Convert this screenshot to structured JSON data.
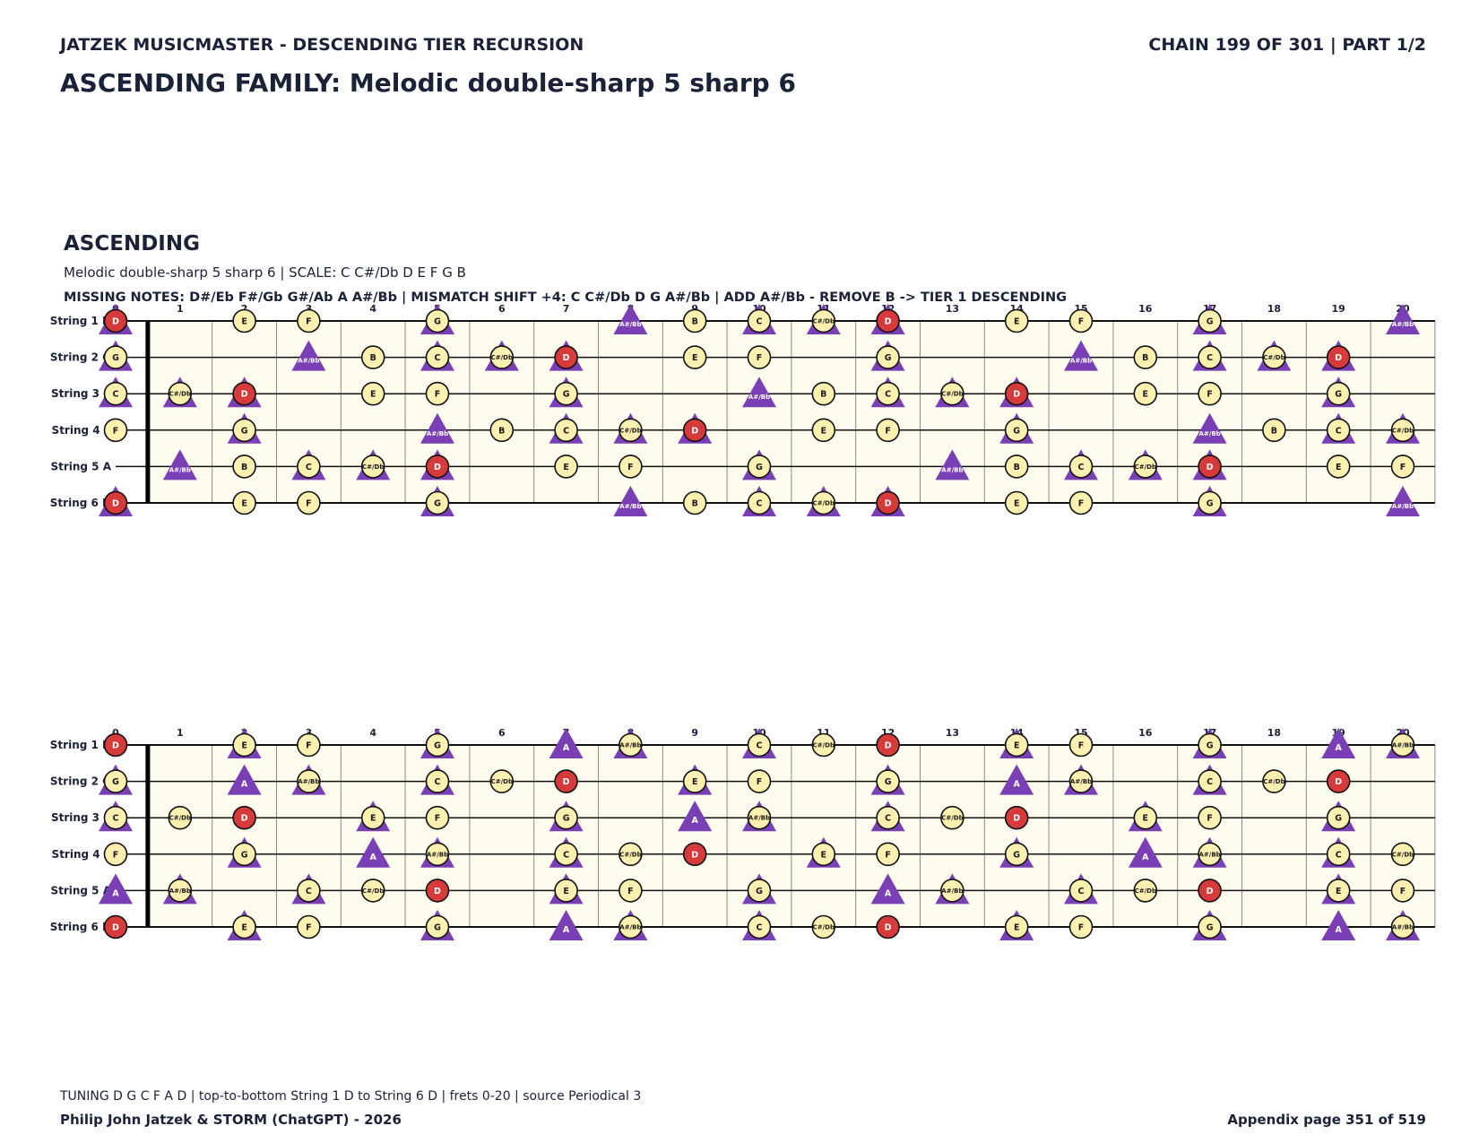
{
  "header": {
    "series": "JATZEK MUSICMASTER - DESCENDING TIER RECURSION",
    "chain": "CHAIN 199 OF 301  |  PART 1/2",
    "title": "ASCENDING FAMILY: Melodic double-sharp 5 sharp 6"
  },
  "section": {
    "title": "ASCENDING",
    "subtitle": "Melodic double-sharp 5 sharp 6  |  SCALE: C C#/Db D E F G B",
    "missing": "MISSING NOTES: D#/Eb F#/Gb G#/Ab A A#/Bb  |  MISMATCH SHIFT +4: C C#/Db D G A#/Bb  |  ADD A#/Bb - REMOVE B -> TIER 1 DESCENDING"
  },
  "boards": [
    {
      "frets": [
        0,
        1,
        2,
        3,
        4,
        5,
        6,
        7,
        8,
        9,
        10,
        11,
        12,
        13,
        14,
        15,
        16,
        17,
        18,
        19,
        20
      ],
      "circle_notes": [
        "C",
        "C#/Db",
        "D",
        "E",
        "F",
        "G",
        "B"
      ],
      "triangle_notes": [
        "C",
        "C#/Db",
        "D",
        "G",
        "A#/Bb"
      ],
      "root_note": "D",
      "strings": [
        {
          "label": "String 1 D",
          "notes": [
            "D",
            null,
            "E",
            "F",
            null,
            "G",
            null,
            null,
            "A#/Bb",
            "B",
            "C",
            "C#/Db",
            "D",
            null,
            "E",
            "F",
            null,
            "G",
            null,
            null,
            "A#/Bb"
          ]
        },
        {
          "label": "String 2 G",
          "notes": [
            "G",
            null,
            null,
            "A#/Bb",
            "B",
            "C",
            "C#/Db",
            "D",
            null,
            "E",
            "F",
            null,
            "G",
            null,
            null,
            "A#/Bb",
            "B",
            "C",
            "C#/Db",
            "D",
            null
          ]
        },
        {
          "label": "String 3 C",
          "notes": [
            "C",
            "C#/Db",
            "D",
            null,
            "E",
            "F",
            null,
            "G",
            null,
            null,
            "A#/Bb",
            "B",
            "C",
            "C#/Db",
            "D",
            null,
            "E",
            "F",
            null,
            "G",
            null
          ]
        },
        {
          "label": "String 4 F",
          "notes": [
            "F",
            null,
            "G",
            null,
            null,
            "A#/Bb",
            "B",
            "C",
            "C#/Db",
            "D",
            null,
            "E",
            "F",
            null,
            "G",
            null,
            null,
            "A#/Bb",
            "B",
            "C",
            "C#/Db"
          ]
        },
        {
          "label": "String 5 A",
          "notes": [
            null,
            "A#/Bb",
            "B",
            "C",
            "C#/Db",
            "D",
            null,
            "E",
            "F",
            null,
            "G",
            null,
            null,
            "A#/Bb",
            "B",
            "C",
            "C#/Db",
            "D",
            null,
            "E",
            "F"
          ]
        },
        {
          "label": "String 6 D",
          "notes": [
            "D",
            null,
            "E",
            "F",
            null,
            "G",
            null,
            null,
            "A#/Bb",
            "B",
            "C",
            "C#/Db",
            "D",
            null,
            "E",
            "F",
            null,
            "G",
            null,
            null,
            "A#/Bb"
          ]
        }
      ]
    },
    {
      "frets": [
        0,
        1,
        2,
        3,
        4,
        5,
        6,
        7,
        8,
        9,
        10,
        11,
        12,
        13,
        14,
        15,
        16,
        17,
        18,
        19,
        20
      ],
      "circle_notes": [
        "C",
        "C#/Db",
        "D",
        "E",
        "F",
        "G",
        "A#/Bb"
      ],
      "triangle_notes": [
        "C",
        "E",
        "G",
        "A",
        "A#/Bb"
      ],
      "root_note": "D",
      "strings": [
        {
          "label": "String 1 D",
          "notes": [
            "D",
            null,
            "E",
            "F",
            null,
            "G",
            null,
            "A",
            "A#/Bb",
            null,
            "C",
            "C#/Db",
            "D",
            null,
            "E",
            "F",
            null,
            "G",
            null,
            "A",
            "A#/Bb"
          ]
        },
        {
          "label": "String 2 G",
          "notes": [
            "G",
            null,
            "A",
            "A#/Bb",
            null,
            "C",
            "C#/Db",
            "D",
            null,
            "E",
            "F",
            null,
            "G",
            null,
            "A",
            "A#/Bb",
            null,
            "C",
            "C#/Db",
            "D",
            null
          ]
        },
        {
          "label": "String 3 C",
          "notes": [
            "C",
            "C#/Db",
            "D",
            null,
            "E",
            "F",
            null,
            "G",
            null,
            "A",
            "A#/Bb",
            null,
            "C",
            "C#/Db",
            "D",
            null,
            "E",
            "F",
            null,
            "G",
            null
          ]
        },
        {
          "label": "String 4 F",
          "notes": [
            "F",
            null,
            "G",
            null,
            "A",
            "A#/Bb",
            null,
            "C",
            "C#/Db",
            "D",
            null,
            "E",
            "F",
            null,
            "G",
            null,
            "A",
            "A#/Bb",
            null,
            "C",
            "C#/Db"
          ]
        },
        {
          "label": "String 5 A",
          "notes": [
            "A",
            "A#/Bb",
            null,
            "C",
            "C#/Db",
            "D",
            null,
            "E",
            "F",
            null,
            "G",
            null,
            "A",
            "A#/Bb",
            null,
            "C",
            "C#/Db",
            "D",
            null,
            "E",
            "F"
          ]
        },
        {
          "label": "String 6 D",
          "notes": [
            "D",
            null,
            "E",
            "F",
            null,
            "G",
            null,
            "A",
            "A#/Bb",
            null,
            "C",
            "C#/Db",
            "D",
            null,
            "E",
            "F",
            null,
            "G",
            null,
            "A",
            "A#/Bb"
          ]
        }
      ]
    }
  ],
  "footer": {
    "note": "TUNING D G C F A D | top-to-bottom String 1 D to String 6 D | frets 0-20 | source Periodical 3",
    "credit": "Philip John Jatzek & STORM (ChatGPT) - 2026",
    "page": "Appendix page 351 of 519"
  }
}
